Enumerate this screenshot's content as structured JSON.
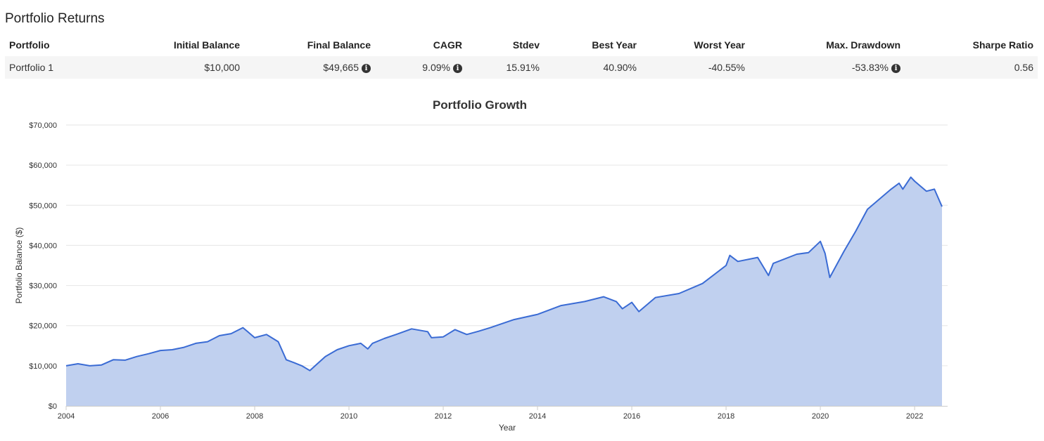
{
  "section": {
    "title": "Portfolio Returns"
  },
  "table": {
    "headers": [
      "Portfolio",
      "Initial Balance",
      "Final Balance",
      "CAGR",
      "Stdev",
      "Best Year",
      "Worst Year",
      "Max. Drawdown",
      "Sharpe Ratio"
    ],
    "row": {
      "portfolio": "Portfolio 1",
      "initial_balance": "$10,000",
      "final_balance": "$49,665",
      "cagr": "9.09%",
      "stdev": "15.91%",
      "best_year": "40.90%",
      "worst_year": "-40.55%",
      "max_drawdown": "-53.83%",
      "sharpe_ratio": "0.56"
    },
    "info_icon": "info-circle-icon"
  },
  "chart_data": {
    "type": "area",
    "title": "Portfolio Growth",
    "xlabel": "Year",
    "ylabel": "Portfolio Balance ($)",
    "xlim": [
      2004,
      2022.7
    ],
    "ylim": [
      0,
      70000
    ],
    "x_ticks": [
      "2004",
      "2006",
      "2008",
      "2010",
      "2012",
      "2014",
      "2016",
      "2018",
      "2020",
      "2022"
    ],
    "y_ticks": [
      "$0",
      "$10,000",
      "$20,000",
      "$30,000",
      "$40,000",
      "$50,000",
      "$60,000",
      "$70,000"
    ],
    "grid": true,
    "colors": {
      "line": "#3a6bd4",
      "fill": "#c0d0ef",
      "grid": "#e6e6e6"
    },
    "series": [
      {
        "x": [
          2004.0,
          2004.25,
          2004.5,
          2004.75,
          2005.0,
          2005.25,
          2005.5,
          2005.75,
          2006.0,
          2006.25,
          2006.5,
          2006.75,
          2007.0,
          2007.25,
          2007.5,
          2007.75,
          2007.85,
          2008.0,
          2008.25,
          2008.5,
          2008.67,
          2008.83,
          2009.0,
          2009.17,
          2009.33,
          2009.5,
          2009.75,
          2010.0,
          2010.25,
          2010.4,
          2010.5,
          2010.75,
          2011.0,
          2011.33,
          2011.67,
          2011.75,
          2012.0,
          2012.25,
          2012.5,
          2012.75,
          2013.0,
          2013.5,
          2014.0,
          2014.5,
          2015.0,
          2015.4,
          2015.67,
          2015.8,
          2016.0,
          2016.15,
          2016.5,
          2017.0,
          2017.5,
          2018.0,
          2018.08,
          2018.25,
          2018.67,
          2018.9,
          2019.0,
          2019.5,
          2019.75,
          2020.0,
          2020.1,
          2020.2,
          2020.5,
          2020.75,
          2021.0,
          2021.5,
          2021.67,
          2021.75,
          2021.92,
          2022.0,
          2022.25,
          2022.42,
          2022.58
        ],
        "values": [
          10000,
          10500,
          10000,
          10200,
          11500,
          11400,
          12300,
          13000,
          13800,
          14000,
          14600,
          15600,
          16000,
          17500,
          18000,
          19500,
          18500,
          17000,
          17800,
          16000,
          11500,
          10800,
          10000,
          8800,
          10500,
          12300,
          14000,
          15000,
          15600,
          14200,
          15600,
          16800,
          17800,
          19200,
          18500,
          17000,
          17200,
          19000,
          17800,
          18600,
          19500,
          21500,
          22800,
          25000,
          26000,
          27200,
          26000,
          24200,
          25800,
          23500,
          27000,
          28000,
          30500,
          35000,
          37500,
          36000,
          37000,
          32500,
          35500,
          37800,
          38200,
          41000,
          38000,
          32000,
          38500,
          43500,
          49000,
          54000,
          55500,
          54000,
          57000,
          56000,
          53500,
          54000,
          49665
        ]
      }
    ]
  }
}
